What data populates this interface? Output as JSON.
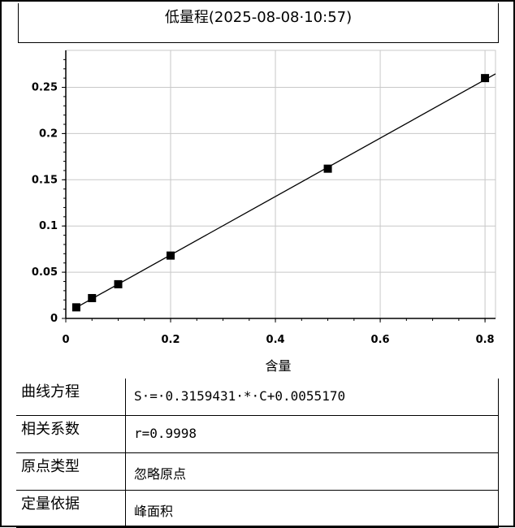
{
  "window": {
    "title": "低量程(2025-08-08·10:57)"
  },
  "chart_data": {
    "type": "scatter",
    "x": [
      0.02,
      0.05,
      0.1,
      0.2,
      0.5,
      0.8
    ],
    "y": [
      0.012,
      0.022,
      0.037,
      0.068,
      0.162,
      0.26
    ],
    "fit_line": {
      "slope": 0.3159431,
      "intercept": 0.005517
    },
    "xlabel": "含量",
    "ylabel": "",
    "xlim": [
      0,
      0.82
    ],
    "ylim": [
      0,
      0.29
    ],
    "xticks": [
      "0",
      "0.2",
      "0.4",
      "0.6",
      "0.8"
    ],
    "yticks": [
      "0",
      "0.05",
      "0.1",
      "0.15",
      "0.2",
      "0.25"
    ],
    "grid": true
  },
  "info": {
    "rows": [
      {
        "label": "曲线方程",
        "value": "S·=·0.3159431·*·C+0.0055170"
      },
      {
        "label": "相关系数",
        "value": "r=0.9998"
      },
      {
        "label": "原点类型",
        "value": "忽略原点"
      },
      {
        "label": "定量依据",
        "value": "峰面积"
      }
    ]
  }
}
